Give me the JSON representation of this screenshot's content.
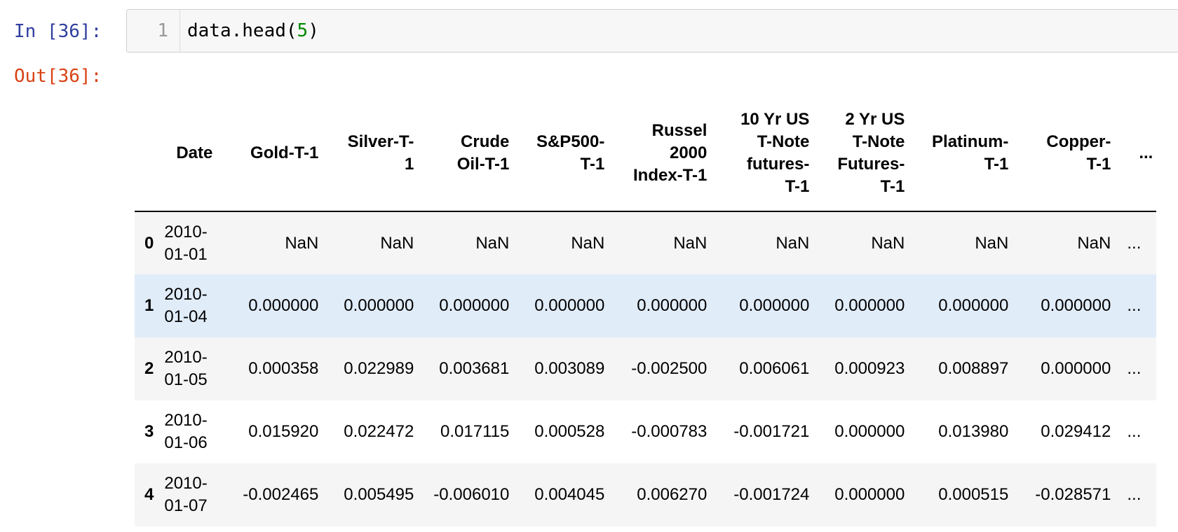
{
  "input_cell": {
    "prompt": "In [36]:",
    "line_number": "1",
    "code_prefix": "data.head(",
    "code_arg": "5",
    "code_suffix": ")"
  },
  "output_cell": {
    "prompt": "Out[36]:"
  },
  "table": {
    "columns": [
      {
        "lines": [
          "Date"
        ]
      },
      {
        "lines": [
          "Gold-T-1"
        ]
      },
      {
        "lines": [
          "Silver-T-",
          "1"
        ]
      },
      {
        "lines": [
          "Crude",
          "Oil-T-1"
        ]
      },
      {
        "lines": [
          "S&P500-",
          "T-1"
        ]
      },
      {
        "lines": [
          "Russel",
          "2000",
          "Index-T-1"
        ]
      },
      {
        "lines": [
          "10 Yr US",
          "T-Note",
          "futures-",
          "T-1"
        ]
      },
      {
        "lines": [
          "2 Yr US",
          "T-Note",
          "Futures-",
          "T-1"
        ]
      },
      {
        "lines": [
          "Platinum-",
          "T-1"
        ]
      },
      {
        "lines": [
          "Copper-",
          "T-1"
        ]
      },
      {
        "lines": [
          "..."
        ]
      }
    ],
    "rows": [
      {
        "index": "0",
        "date": [
          "2010-",
          "01-01"
        ],
        "values": [
          "NaN",
          "NaN",
          "NaN",
          "NaN",
          "NaN",
          "NaN",
          "NaN",
          "NaN",
          "NaN"
        ],
        "ellipsis": "..."
      },
      {
        "index": "1",
        "date": [
          "2010-",
          "01-04"
        ],
        "values": [
          "0.000000",
          "0.000000",
          "0.000000",
          "0.000000",
          "0.000000",
          "0.000000",
          "0.000000",
          "0.000000",
          "0.000000"
        ],
        "ellipsis": "..."
      },
      {
        "index": "2",
        "date": [
          "2010-",
          "01-05"
        ],
        "values": [
          "0.000358",
          "0.022989",
          "0.003681",
          "0.003089",
          "-0.002500",
          "0.006061",
          "0.000923",
          "0.008897",
          "0.000000"
        ],
        "ellipsis": "..."
      },
      {
        "index": "3",
        "date": [
          "2010-",
          "01-06"
        ],
        "values": [
          "0.015920",
          "0.022472",
          "0.017115",
          "0.000528",
          "-0.000783",
          "-0.001721",
          "0.000000",
          "0.013980",
          "0.029412"
        ],
        "ellipsis": "..."
      },
      {
        "index": "4",
        "date": [
          "2010-",
          "01-07"
        ],
        "values": [
          "-0.002465",
          "0.005495",
          "-0.006010",
          "0.004045",
          "0.006270",
          "-0.001724",
          "0.000000",
          "0.000515",
          "-0.028571"
        ],
        "ellipsis": "..."
      }
    ],
    "hovered_row": "1"
  },
  "colors": {
    "in_prompt": "#303f9f",
    "out_prompt": "#d84315",
    "code_number": "#008800",
    "row_hover": "#e1ecf9"
  }
}
